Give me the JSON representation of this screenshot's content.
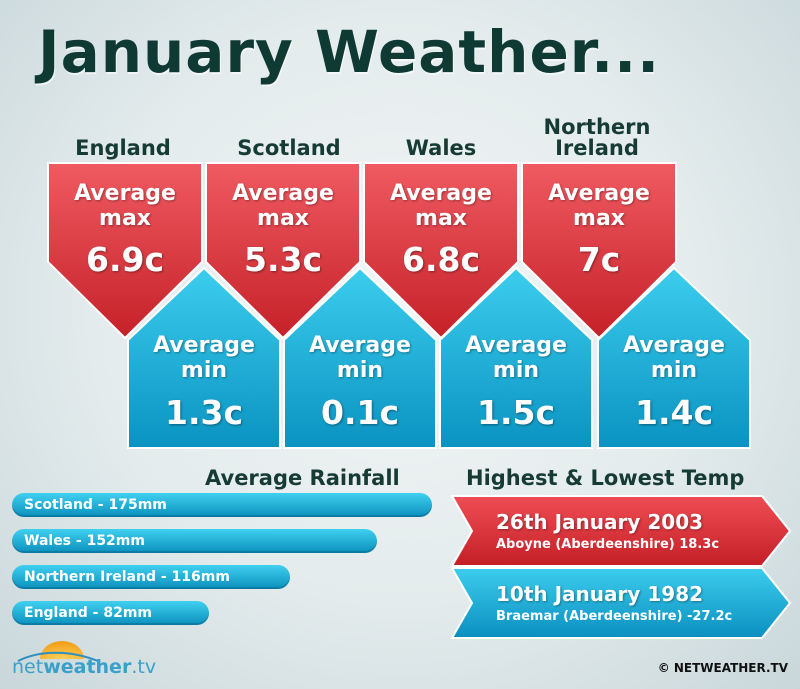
{
  "title": "January Weather...",
  "regions": [
    {
      "name": "England",
      "max_label_1": "Average",
      "max_label_2": "max",
      "max": "6.9c",
      "min_label_1": "Average",
      "min_label_2": "min",
      "min": "1.3c"
    },
    {
      "name": "Scotland",
      "max_label_1": "Average",
      "max_label_2": "max",
      "max": "5.3c",
      "min_label_1": "Average",
      "min_label_2": "min",
      "min": "0.1c"
    },
    {
      "name": "Wales",
      "max_label_1": "Average",
      "max_label_2": "max",
      "max": "6.8c",
      "min_label_1": "Average",
      "min_label_2": "min",
      "min": "1.5c"
    },
    {
      "name_line1": "Northern",
      "name_line2": "Ireland",
      "max_label_1": "Average",
      "max_label_2": "max",
      "max": "7c",
      "min_label_1": "Average",
      "min_label_2": "min",
      "min": "1.4c"
    }
  ],
  "rainfall": {
    "title": "Average Rainfall",
    "items": [
      {
        "label": "Scotland - 175mm",
        "mm": 175
      },
      {
        "label": "Wales - 152mm",
        "mm": 152
      },
      {
        "label": "Northern Ireland - 116mm",
        "mm": 116
      },
      {
        "label": "England - 82mm",
        "mm": 82
      }
    ]
  },
  "extremes": {
    "title": "Highest & Lowest Temp",
    "highest": {
      "date": "26th January 2003",
      "place": "Aboyne (Aberdeenshire) 18.3c"
    },
    "lowest": {
      "date": "10th January 1982",
      "place": "Braemar (Aberdeenshire) -27.2c"
    }
  },
  "footer": {
    "logo_part1": "net",
    "logo_part2": "weather",
    "logo_part3": ".tv",
    "copyright": "© NETWEATHER.TV"
  },
  "colors": {
    "red": "#d9343c",
    "blue": "#1ab1dc",
    "title": "#0f3a33"
  }
}
